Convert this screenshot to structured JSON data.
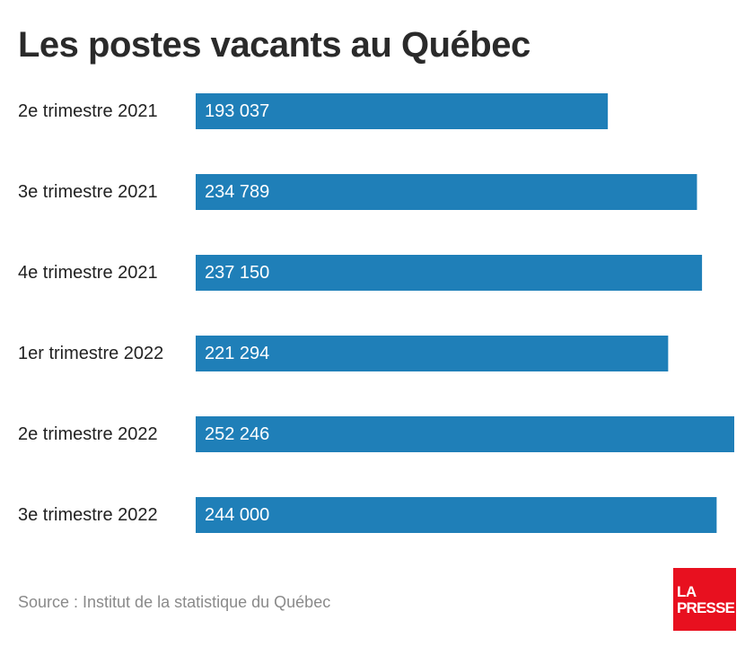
{
  "title": "Les postes vacants au Québec",
  "source": "Source : Institut de la statistique du Québec",
  "logo": {
    "line1": "LA",
    "line2": "PRESSE",
    "color": "#e8101f"
  },
  "colors": {
    "bar": "#1f7fb8"
  },
  "chart_data": {
    "type": "bar",
    "orientation": "horizontal",
    "title": "Les postes vacants au Québec",
    "categories": [
      "2e trimestre 2021",
      "3e trimestre 2021",
      "4e trimestre 2021",
      "1er trimestre 2022",
      "2e trimestre 2022",
      "3e trimestre 2022"
    ],
    "values": [
      193037,
      234789,
      237150,
      221294,
      252246,
      244000
    ],
    "value_labels": [
      "193 037",
      "234 789",
      "237 150",
      "221 294",
      "252 246",
      "244 000"
    ],
    "xlim": [
      0,
      252246
    ],
    "grid": false,
    "legend": "none"
  }
}
